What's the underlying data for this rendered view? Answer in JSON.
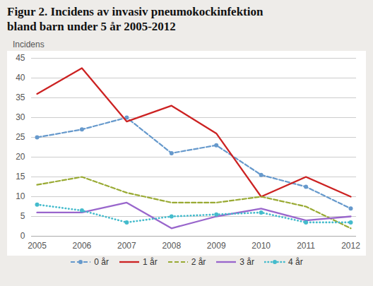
{
  "chart_data": {
    "type": "line",
    "title": "Figur 2. Incidens av invasiv pneumokockinfektion",
    "subtitle": "bland barn under 5 år 2005-2012",
    "y_label": "Incidens",
    "x": [
      2005,
      2006,
      2007,
      2008,
      2009,
      2010,
      2011,
      2012
    ],
    "xlim": [
      2005,
      2012
    ],
    "xticks": [
      2005,
      2006,
      2007,
      2008,
      2009,
      2010,
      2011,
      2012
    ],
    "ylim": [
      0,
      45
    ],
    "yticks": [
      0,
      5,
      10,
      15,
      20,
      25,
      30,
      35,
      40,
      45
    ],
    "grid": true,
    "legend": "bottom",
    "series": [
      {
        "name": "0 år",
        "color": "#6699cc",
        "line_style": "dashed",
        "marker": "o",
        "values": [
          25,
          27,
          30,
          21,
          23,
          15.5,
          12.5,
          7
        ]
      },
      {
        "name": "1 år",
        "color": "#cc2222",
        "line_style": "solid",
        "values": [
          36,
          42.5,
          29,
          33,
          26,
          10,
          15,
          10
        ]
      },
      {
        "name": "2 år",
        "color": "#99aa33",
        "line_style": "dashed",
        "values": [
          13,
          15,
          11,
          8.5,
          8.5,
          10,
          7.5,
          2
        ]
      },
      {
        "name": "3 år",
        "color": "#9966cc",
        "line_style": "solid",
        "values": [
          6,
          6,
          8.5,
          2,
          5,
          7,
          4,
          5
        ]
      },
      {
        "name": "4 år",
        "color": "#44bbcc",
        "line_style": "dotted",
        "marker": "o",
        "values": [
          8,
          6.5,
          3.5,
          5,
          5.5,
          6,
          3.5,
          3.5
        ]
      }
    ]
  }
}
